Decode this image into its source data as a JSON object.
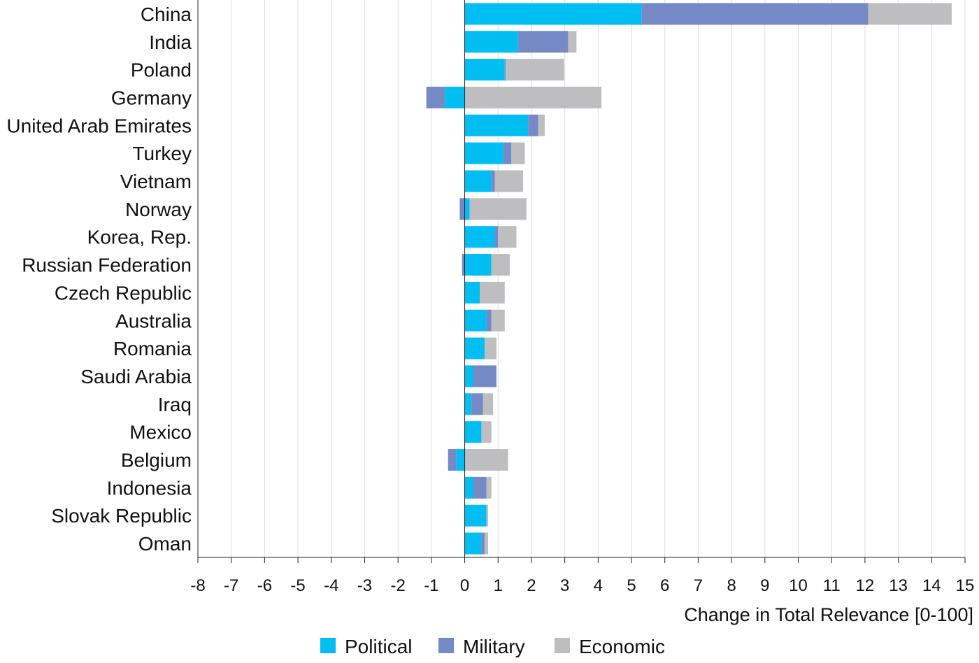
{
  "chart_data": {
    "type": "bar",
    "orientation": "horizontal",
    "stacked": true,
    "categories": [
      "China",
      "India",
      "Poland",
      "Germany",
      "United Arab Emirates",
      "Turkey",
      "Vietnam",
      "Norway",
      "Korea, Rep.",
      "Russian Federation",
      "Czech Republic",
      "Australia",
      "Romania",
      "Saudi Arabia",
      "Iraq",
      "Mexico",
      "Belgium",
      "Indonesia",
      "Slovak Republic",
      "Oman"
    ],
    "series": [
      {
        "name": "Political",
        "color": "#00BEF2",
        "values": [
          5.3,
          1.6,
          1.2,
          -0.6,
          1.9,
          1.15,
          0.8,
          0.15,
          0.9,
          0.8,
          0.45,
          0.65,
          0.6,
          0.25,
          0.2,
          0.5,
          -0.25,
          0.25,
          0.65,
          0.5
        ]
      },
      {
        "name": "Military",
        "color": "#7589C6",
        "values": [
          6.8,
          1.5,
          0.03,
          -0.55,
          0.3,
          0.25,
          0.1,
          -0.15,
          0.1,
          -0.08,
          0.0,
          0.15,
          0.0,
          0.7,
          0.35,
          0.0,
          -0.25,
          0.4,
          0.0,
          0.1
        ]
      },
      {
        "name": "Economic",
        "color": "#BEBEC0",
        "values": [
          2.5,
          0.25,
          1.75,
          4.1,
          0.2,
          0.4,
          0.85,
          1.7,
          0.55,
          0.55,
          0.75,
          0.4,
          0.35,
          0.0,
          0.3,
          0.3,
          1.3,
          0.15,
          0.05,
          0.1
        ]
      }
    ],
    "xlabel": "Change in Total Relevance [0-100]",
    "xlim": [
      -8,
      15
    ],
    "xticks": [
      "-8",
      "-7",
      "-6",
      "-5",
      "-4",
      "-3",
      "-2",
      "-1",
      "0",
      "1",
      "2",
      "3",
      "4",
      "5",
      "6",
      "7",
      "8",
      "9",
      "10",
      "11",
      "12",
      "13",
      "14",
      "15"
    ],
    "grid": "vertical",
    "legend_position": "bottom"
  }
}
